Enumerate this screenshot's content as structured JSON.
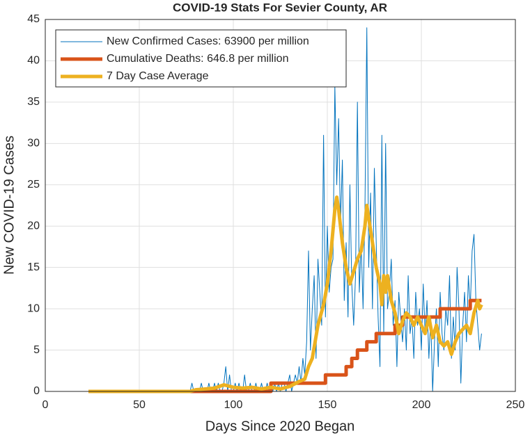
{
  "chart_data": {
    "type": "line",
    "title": "COVID-19 Stats For Sevier County, AR",
    "x_label": "Days Since 2020 Began",
    "y_label": "New COVID-19 Cases",
    "xlim": [
      0,
      250
    ],
    "xticks": [
      0,
      50,
      100,
      150,
      200,
      250
    ],
    "ylim": [
      0,
      45
    ],
    "yticks": [
      0,
      5,
      10,
      15,
      20,
      25,
      30,
      35,
      40,
      45
    ],
    "grid": true,
    "legend": "upper-left",
    "series": [
      {
        "name": "New Confirmed Cases: 63900 per million",
        "color": "#0072bd",
        "width": 1,
        "x": [
          23,
          77,
          78,
          79,
          80,
          81,
          82,
          83,
          84,
          85,
          86,
          87,
          88,
          89,
          90,
          91,
          92,
          93,
          94,
          95,
          96,
          97,
          98,
          99,
          100,
          101,
          102,
          103,
          104,
          105,
          106,
          107,
          108,
          109,
          110,
          111,
          112,
          113,
          114,
          115,
          116,
          117,
          118,
          119,
          120,
          121,
          122,
          123,
          124,
          125,
          126,
          127,
          128,
          129,
          130,
          131,
          132,
          133,
          134,
          135,
          136,
          137,
          138,
          139,
          140,
          141,
          142,
          143,
          144,
          145,
          146,
          147,
          148,
          149,
          150,
          151,
          152,
          153,
          154,
          155,
          156,
          157,
          158,
          159,
          160,
          161,
          162,
          163,
          164,
          165,
          166,
          167,
          168,
          169,
          170,
          171,
          172,
          173,
          174,
          175,
          176,
          177,
          178,
          179,
          180,
          181,
          182,
          183,
          184,
          185,
          186,
          187,
          188,
          189,
          190,
          191,
          192,
          193,
          194,
          195,
          196,
          197,
          198,
          199,
          200,
          201,
          202,
          203,
          204,
          205,
          206,
          207,
          208,
          209,
          210,
          211,
          212,
          213,
          214,
          215,
          216,
          217,
          218,
          219,
          220,
          221,
          222,
          223,
          224,
          225,
          226,
          227,
          228,
          229,
          230,
          231,
          232
        ],
        "values": [
          0,
          0,
          1,
          0,
          0,
          0,
          0,
          1,
          0,
          0,
          0,
          1,
          0,
          0,
          1,
          0,
          1,
          0,
          0,
          1,
          3,
          0,
          2,
          0,
          0,
          1,
          0,
          1,
          0,
          0,
          2,
          0,
          0,
          1,
          0,
          0,
          1,
          0,
          0,
          1,
          0,
          0,
          1,
          0,
          1,
          0,
          1,
          0,
          1,
          0,
          1,
          1,
          0,
          1,
          2,
          0,
          1,
          2,
          1,
          3,
          1,
          4,
          2,
          6,
          17,
          5,
          10,
          14,
          4,
          16,
          12,
          8,
          31,
          9,
          20,
          12,
          15,
          16,
          37,
          25,
          33,
          20,
          28,
          11,
          18,
          9,
          25,
          13,
          8,
          14,
          35,
          12,
          18,
          10,
          22,
          44,
          15,
          24,
          10,
          27,
          18,
          9,
          3,
          31,
          7,
          30,
          10,
          12,
          16,
          8,
          11,
          3,
          12,
          9,
          6,
          10,
          5,
          14,
          7,
          9,
          4,
          12,
          8,
          10,
          5,
          13,
          7,
          11,
          4,
          9,
          0,
          6,
          10,
          3,
          12,
          7,
          5,
          10,
          8,
          14,
          4,
          9,
          5,
          15,
          10,
          1,
          8,
          12,
          6,
          14,
          10,
          17,
          19,
          11,
          8,
          5,
          7
        ]
      },
      {
        "name": "Cumulative Deaths: 646.8 per million",
        "color": "#d95319",
        "width": 5,
        "x": [
          23,
          120,
          120,
          149,
          149,
          160,
          160,
          163,
          163,
          166,
          166,
          171,
          171,
          176,
          176,
          186,
          186,
          190,
          190,
          210,
          210,
          226,
          226,
          232
        ],
        "values": [
          0,
          0,
          1,
          1,
          2,
          2,
          3,
          3,
          4,
          4,
          5,
          5,
          6,
          6,
          7,
          7,
          8,
          8,
          9,
          9,
          10,
          10,
          11,
          11
        ]
      },
      {
        "name": "7 Day Case Average",
        "color": "#edb120",
        "width": 5,
        "x": [
          23,
          77,
          80,
          85,
          90,
          95,
          100,
          105,
          110,
          115,
          120,
          125,
          130,
          135,
          138,
          140,
          142,
          145,
          148,
          150,
          152,
          154,
          155,
          156,
          158,
          160,
          162,
          164,
          166,
          168,
          170,
          171,
          172,
          174,
          176,
          178,
          179,
          180,
          181,
          182,
          184,
          186,
          188,
          190,
          192,
          194,
          196,
          198,
          200,
          202,
          204,
          206,
          208,
          210,
          212,
          214,
          216,
          218,
          220,
          222,
          224,
          226,
          228,
          230,
          231,
          232
        ],
        "values": [
          0,
          0,
          0.2,
          0.3,
          0.4,
          0.8,
          0.5,
          0.4,
          0.5,
          0.3,
          0.5,
          0.3,
          0.6,
          1.2,
          1.5,
          3,
          4,
          8,
          10.5,
          13,
          17,
          22,
          23.5,
          22,
          18,
          15,
          13,
          14.5,
          16,
          17,
          20,
          22.5,
          21,
          18,
          15,
          13,
          10.5,
          14,
          12,
          14,
          11,
          9.5,
          7,
          8.5,
          9.5,
          9,
          8,
          9,
          8,
          7,
          9,
          6.5,
          8,
          6,
          5.5,
          6,
          4.5,
          6,
          7,
          7.5,
          8,
          7,
          9.5,
          11,
          10,
          10.5
        ]
      }
    ]
  }
}
